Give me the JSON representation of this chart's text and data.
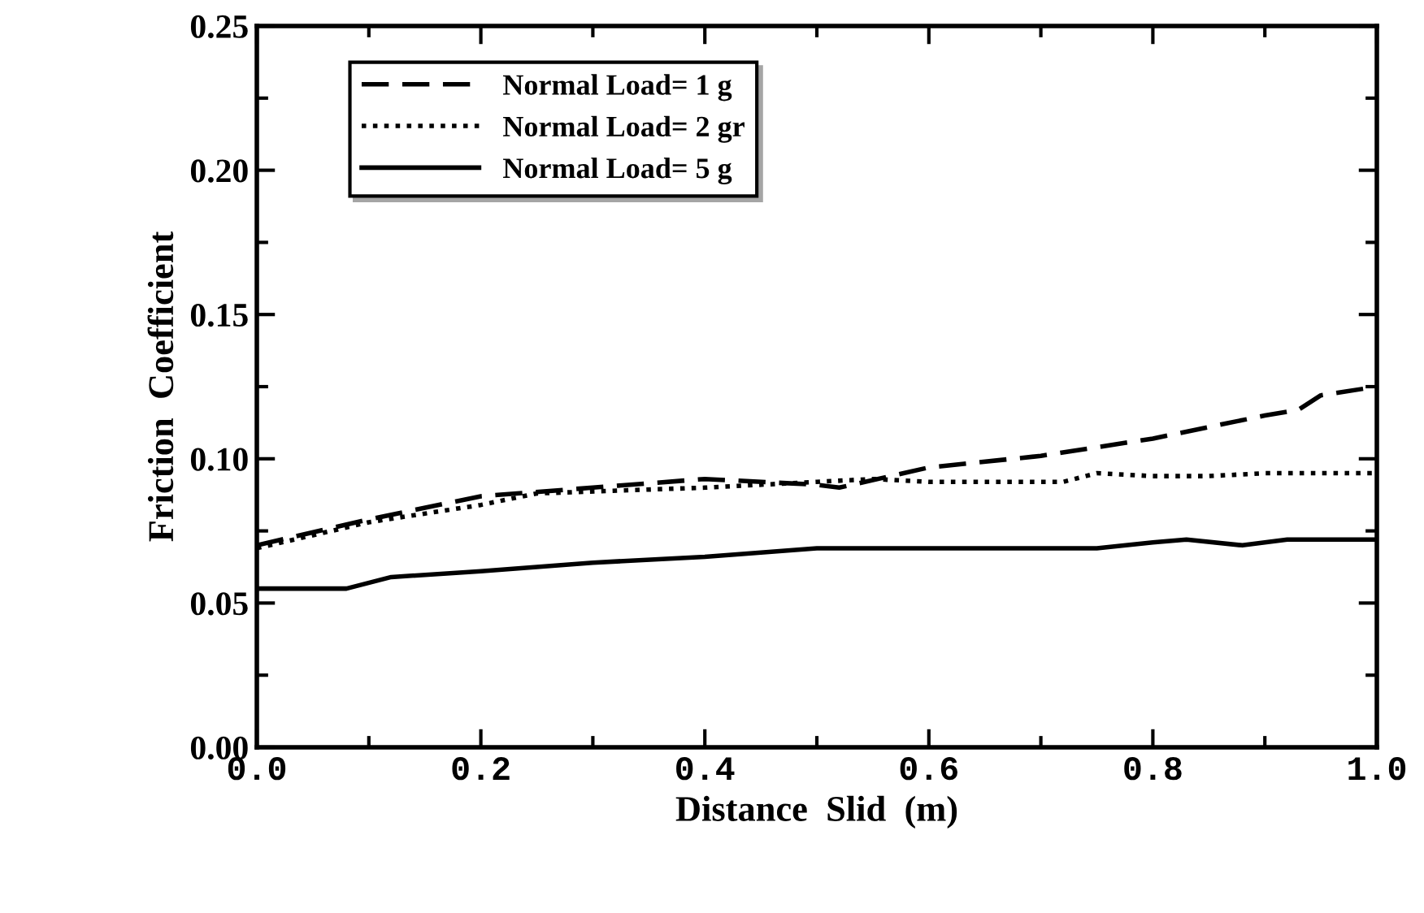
{
  "chart_data": {
    "type": "line",
    "xlabel": "Distance  Slid  (m)",
    "ylabel": "Friction  Coefficient",
    "series": [
      {
        "name": "Normal Load= 1 g",
        "color": "#000000",
        "line_style": "dashed",
        "x": [
          0,
          0.1,
          0.2,
          0.3,
          0.4,
          0.5,
          0.52,
          0.6,
          0.7,
          0.8,
          0.85,
          0.9,
          0.93,
          0.95,
          1.0
        ],
        "values": [
          0.07,
          0.079,
          0.087,
          0.09,
          0.093,
          0.091,
          0.09,
          0.097,
          0.101,
          0.107,
          0.111,
          0.115,
          0.117,
          0.122,
          0.125
        ]
      },
      {
        "name": "Normal Load= 2 gr",
        "color": "#000000",
        "line_style": "dotted",
        "x": [
          0,
          0.1,
          0.2,
          0.25,
          0.4,
          0.5,
          0.55,
          0.6,
          0.7,
          0.72,
          0.75,
          0.8,
          0.85,
          0.9,
          1.0
        ],
        "values": [
          0.069,
          0.078,
          0.084,
          0.088,
          0.09,
          0.092,
          0.093,
          0.092,
          0.092,
          0.092,
          0.095,
          0.094,
          0.094,
          0.095,
          0.095
        ]
      },
      {
        "name": "Normal Load= 5 g",
        "color": "#000000",
        "line_style": "solid",
        "x": [
          0,
          0.08,
          0.12,
          0.2,
          0.3,
          0.4,
          0.5,
          0.6,
          0.75,
          0.8,
          0.83,
          0.88,
          0.92,
          1.0
        ],
        "values": [
          0.055,
          0.055,
          0.059,
          0.061,
          0.064,
          0.066,
          0.069,
          0.069,
          0.069,
          0.071,
          0.072,
          0.07,
          0.072,
          0.072
        ]
      }
    ],
    "xlim": [
      0,
      1
    ],
    "xticks": [
      {
        "value": 0,
        "label": "0.0"
      },
      {
        "value": 0.2,
        "label": "0.2"
      },
      {
        "value": 0.4,
        "label": "0.4"
      },
      {
        "value": 0.6,
        "label": "0.6"
      },
      {
        "value": 0.8,
        "label": "0.8"
      },
      {
        "value": 1,
        "label": "1.0"
      }
    ],
    "ylim": [
      0,
      0.25
    ],
    "yticks": [
      {
        "value": 0,
        "label": "0.00"
      },
      {
        "value": 0.05,
        "label": "0.05"
      },
      {
        "value": 0.1,
        "label": "0.10"
      },
      {
        "value": 0.15,
        "label": "0.15"
      },
      {
        "value": 0.2,
        "label": "0.20"
      },
      {
        "value": 0.25,
        "label": "0.25"
      }
    ],
    "grid": false,
    "legend": "top left",
    "marker": "none"
  }
}
